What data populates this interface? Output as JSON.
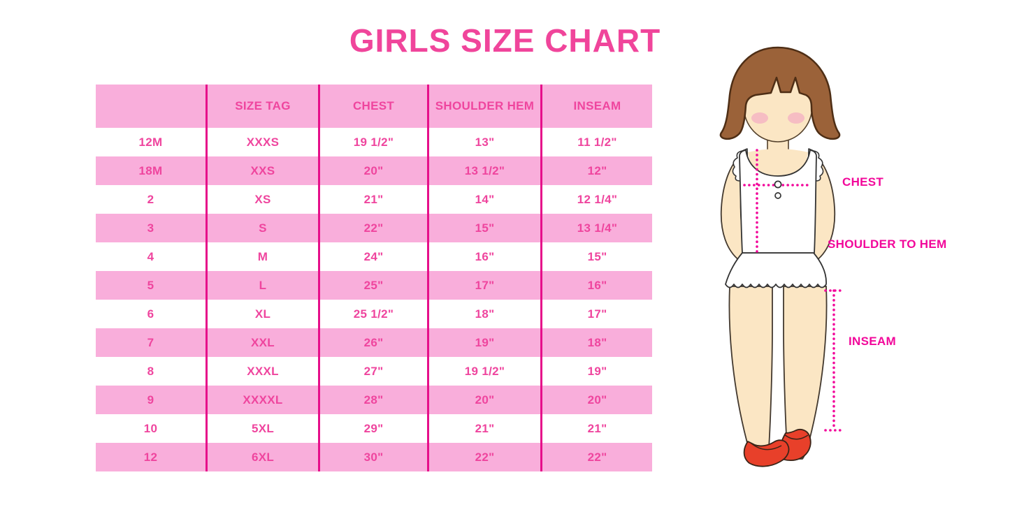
{
  "title": "GIRLS SIZE CHART",
  "colors": {
    "title_pink": "#F0459B",
    "cell_text_pink": "#EF459E",
    "row_background_pink": "#F9AEDB",
    "column_line_magenta": "#E60F8A",
    "annotation_magenta": "#F2079A",
    "hair_brown": "#9B6239",
    "skin": "#FBE6C4",
    "shoe_red": "#E8402A"
  },
  "chart_data": {
    "type": "table",
    "title": "GIRLS SIZE CHART",
    "columns": [
      "",
      "SIZE TAG",
      "CHEST",
      "SHOULDER HEM",
      "INSEAM"
    ],
    "rows": [
      [
        "12M",
        "XXXS",
        "19 1/2\"",
        "13\"",
        "11 1/2\""
      ],
      [
        "18M",
        "XXS",
        "20\"",
        "13 1/2\"",
        "12\""
      ],
      [
        "2",
        "XS",
        "21\"",
        "14\"",
        "12 1/4\""
      ],
      [
        "3",
        "S",
        "22\"",
        "15\"",
        "13 1/4\""
      ],
      [
        "4",
        "M",
        "24\"",
        "16\"",
        "15\""
      ],
      [
        "5",
        "L",
        "25\"",
        "17\"",
        "16\""
      ],
      [
        "6",
        "XL",
        "25 1/2\"",
        "18\"",
        "17\""
      ],
      [
        "7",
        "XXL",
        "26\"",
        "19\"",
        "18\""
      ],
      [
        "8",
        "XXXL",
        "27\"",
        "19 1/2\"",
        "19\""
      ],
      [
        "9",
        "XXXXL",
        "28\"",
        "20\"",
        "20\""
      ],
      [
        "10",
        "5XL",
        "29\"",
        "21\"",
        "21\""
      ],
      [
        "12",
        "6XL",
        "30\"",
        "22\"",
        "22\""
      ]
    ],
    "layout": {
      "row_striping": "header pink, then alternating white/pink starting white",
      "grid": "magenta vertical column separators only, no outer border"
    }
  },
  "figure": {
    "description": "illustration of girl showing measurement lines",
    "labels": {
      "chest": "CHEST",
      "shoulder_to_hem": "SHOULDER TO HEM",
      "inseam": "INSEAM"
    }
  }
}
